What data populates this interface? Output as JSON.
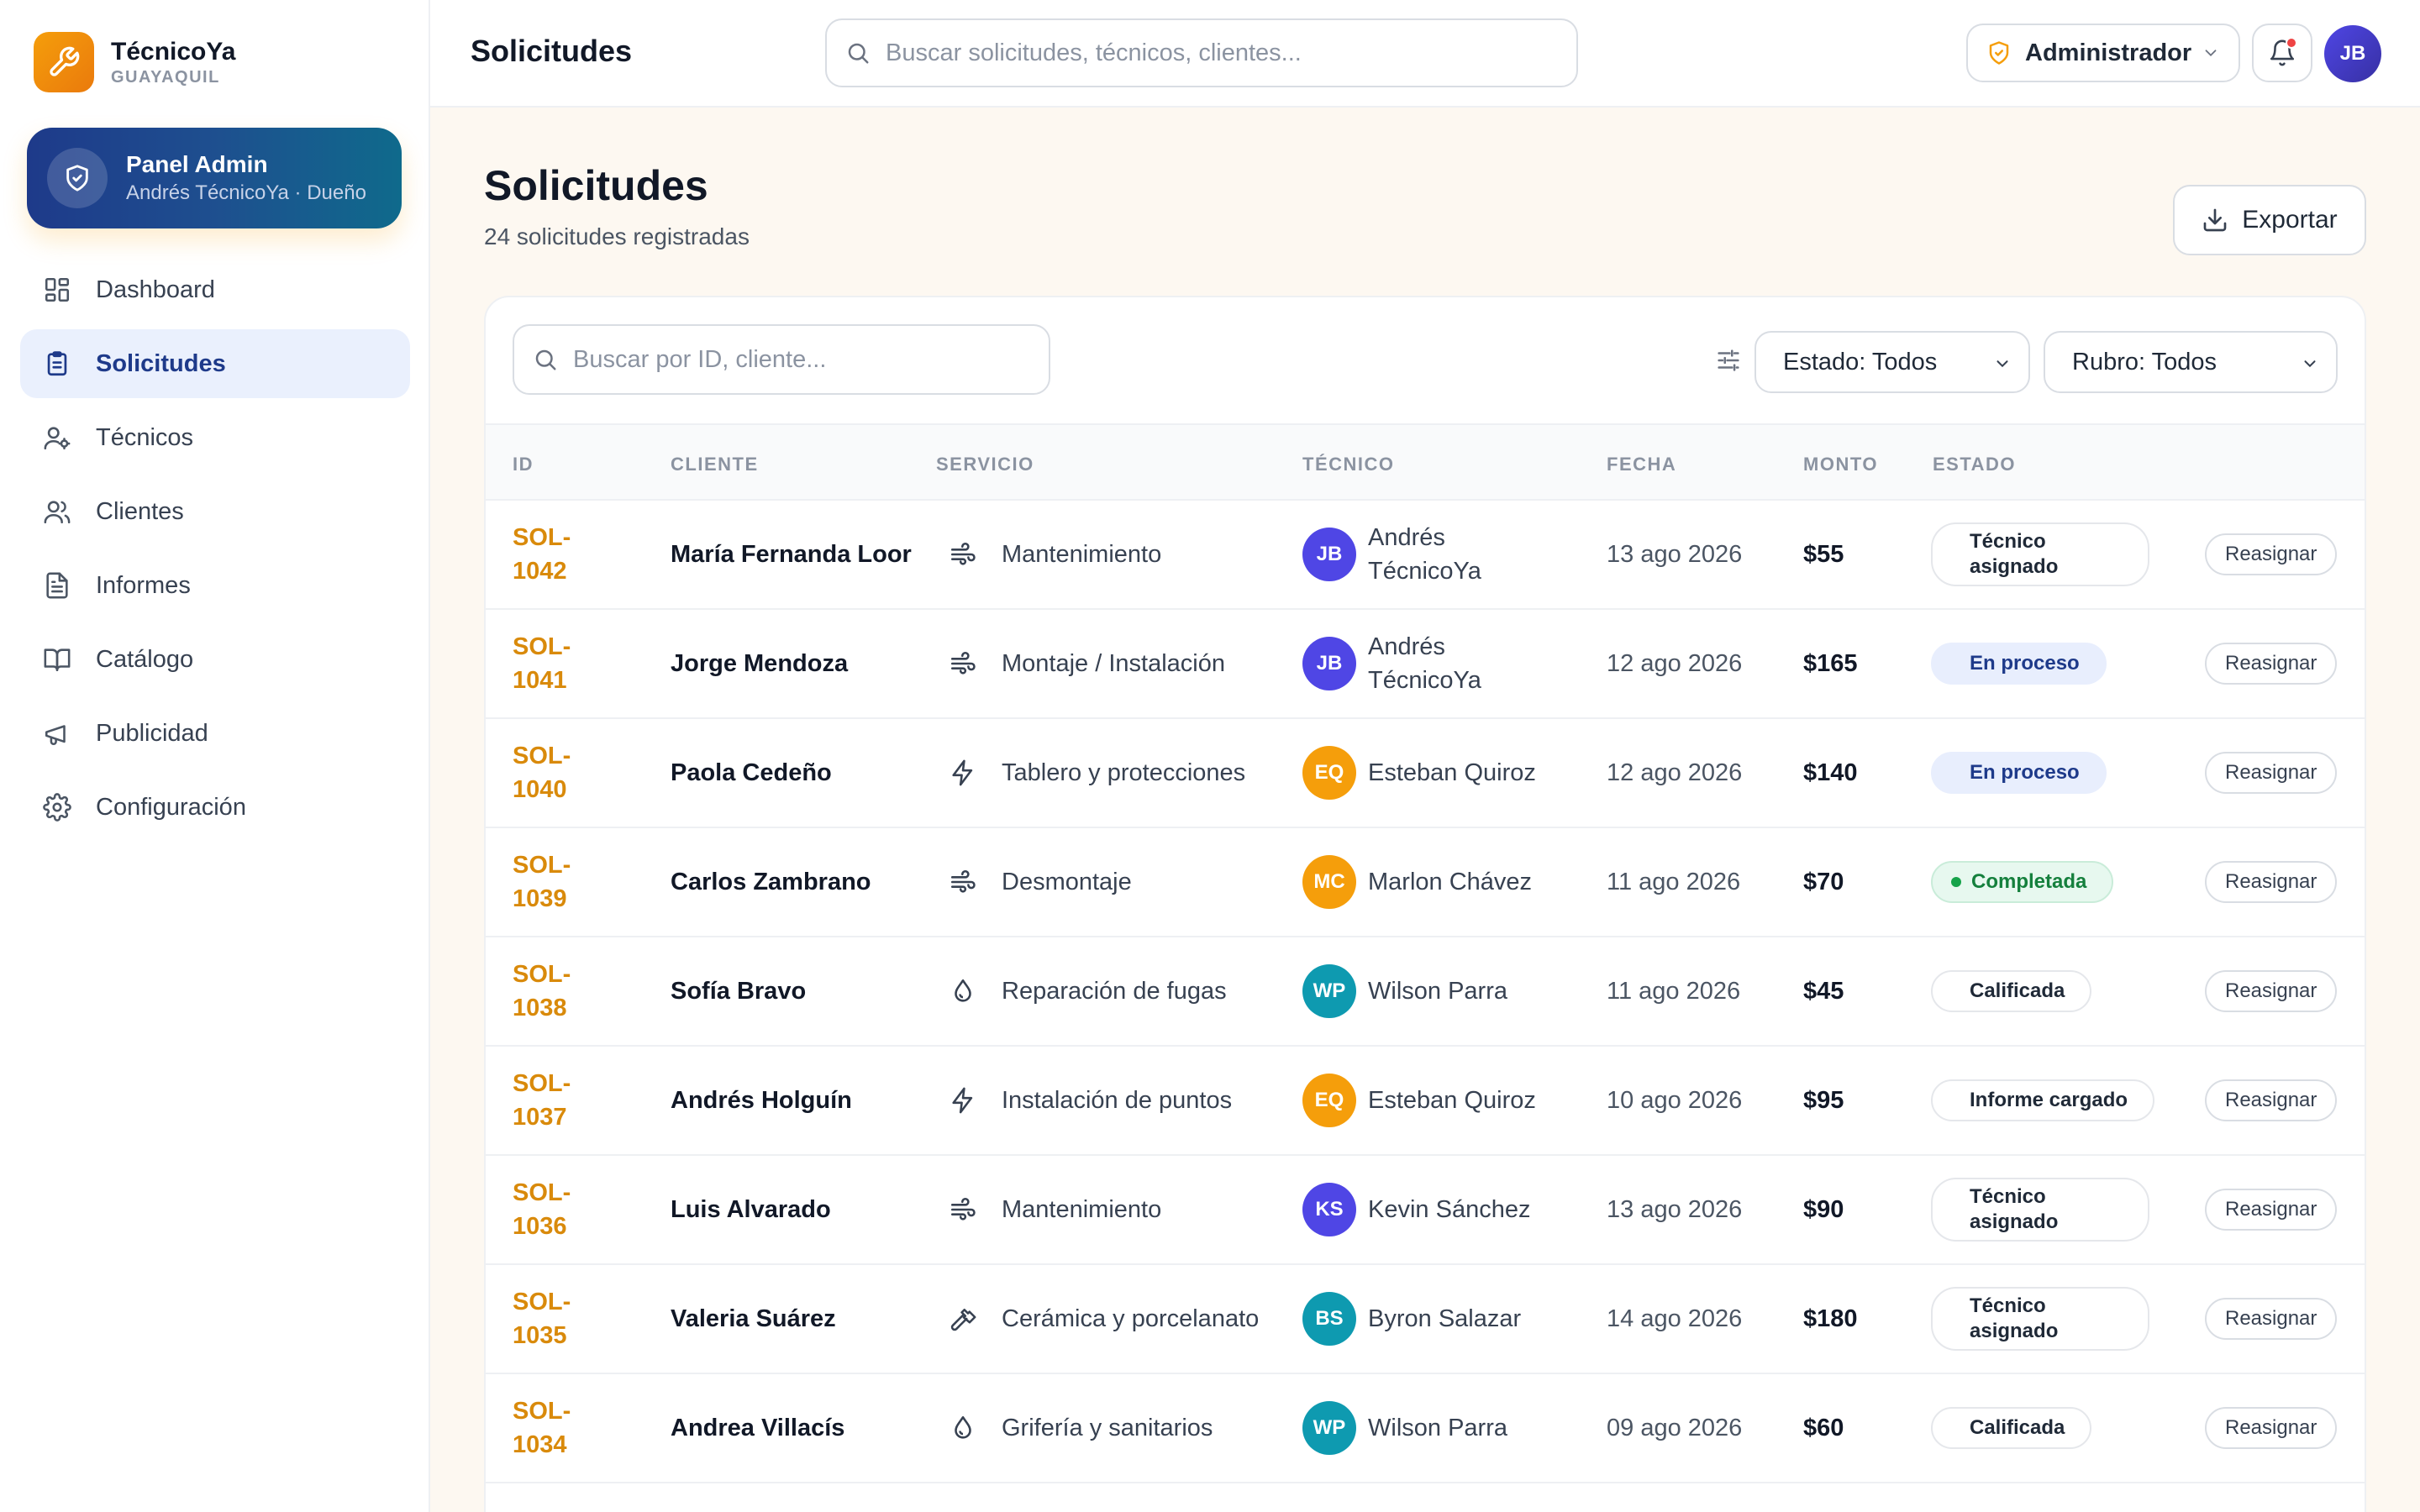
{
  "brand": {
    "name": "TécnicoYa",
    "city": "GUAYAQUIL"
  },
  "admin_card": {
    "title": "Panel Admin",
    "subtitle": "Andrés TécnicoYa · Dueño"
  },
  "nav": [
    {
      "label": "Dashboard",
      "icon": "dashboard-icon"
    },
    {
      "label": "Solicitudes",
      "icon": "clipboard-icon",
      "active": true
    },
    {
      "label": "Técnicos",
      "icon": "user-gear-icon"
    },
    {
      "label": "Clientes",
      "icon": "users-icon"
    },
    {
      "label": "Informes",
      "icon": "document-icon"
    },
    {
      "label": "Catálogo",
      "icon": "book-icon"
    },
    {
      "label": "Publicidad",
      "icon": "megaphone-icon"
    },
    {
      "label": "Configuración",
      "icon": "gear-icon"
    }
  ],
  "topbar": {
    "title": "Solicitudes",
    "search_placeholder": "Buscar solicitudes, técnicos, clientes...",
    "role": "Administrador",
    "avatar_initials": "JB"
  },
  "page": {
    "title": "Solicitudes",
    "subtitle": "24 solicitudes registradas",
    "export_label": "Exportar"
  },
  "filters": {
    "search_placeholder": "Buscar por ID, cliente...",
    "estado": "Estado: Todos",
    "rubro": "Rubro: Todos"
  },
  "table": {
    "columns": [
      "ID",
      "CLIENTE",
      "SERVICIO",
      "TÉCNICO",
      "FECHA",
      "MONTO",
      "ESTADO"
    ],
    "action_label": "Reasignar",
    "rows": [
      {
        "id": "SOL-1042",
        "client": "María Fernanda Loor",
        "service": "Mantenimiento",
        "service_icon": "airflow-icon",
        "tech_initials": "JB",
        "tech": "Andrés TécnicoYa",
        "tech_color": "#4f46e5",
        "date": "13 ago 2026",
        "amount": "$55",
        "status": "Técnico asignado",
        "status_type": "asignado"
      },
      {
        "id": "SOL-1041",
        "client": "Jorge Mendoza",
        "service": "Montaje / Instalación",
        "service_icon": "airflow-icon",
        "tech_initials": "JB",
        "tech": "Andrés TécnicoYa",
        "tech_color": "#4f46e5",
        "date": "12 ago 2026",
        "amount": "$165",
        "status": "En proceso",
        "status_type": "proceso"
      },
      {
        "id": "SOL-1040",
        "client": "Paola Cedeño",
        "service": "Tablero y protecciones",
        "service_icon": "lightning-icon",
        "tech_initials": "EQ",
        "tech": "Esteban Quiroz",
        "tech_color": "#f59e0b",
        "date": "12 ago 2026",
        "amount": "$140",
        "status": "En proceso",
        "status_type": "proceso"
      },
      {
        "id": "SOL-1039",
        "client": "Carlos Zambrano",
        "service": "Desmontaje",
        "service_icon": "airflow-icon",
        "tech_initials": "MC",
        "tech": "Marlon Chávez",
        "tech_color": "#f59e0b",
        "date": "11 ago 2026",
        "amount": "$70",
        "status": "Completada",
        "status_type": "completada"
      },
      {
        "id": "SOL-1038",
        "client": "Sofía Bravo",
        "service": "Reparación de fugas",
        "service_icon": "droplet-icon",
        "tech_initials": "WP",
        "tech": "Wilson Parra",
        "tech_color": "#0e9ab0",
        "date": "11 ago 2026",
        "amount": "$45",
        "status": "Calificada",
        "status_type": "neutral"
      },
      {
        "id": "SOL-1037",
        "client": "Andrés Holguín",
        "service": "Instalación de puntos",
        "service_icon": "lightning-icon",
        "tech_initials": "EQ",
        "tech": "Esteban Quiroz",
        "tech_color": "#f59e0b",
        "date": "10 ago 2026",
        "amount": "$95",
        "status": "Informe cargado",
        "status_type": "neutral"
      },
      {
        "id": "SOL-1036",
        "client": "Luis Alvarado",
        "service": "Mantenimiento",
        "service_icon": "airflow-icon",
        "tech_initials": "KS",
        "tech": "Kevin Sánchez",
        "tech_color": "#4f46e5",
        "date": "13 ago 2026",
        "amount": "$90",
        "status": "Técnico asignado",
        "status_type": "asignado"
      },
      {
        "id": "SOL-1035",
        "client": "Valeria Suárez",
        "service": "Cerámica y porcelanato",
        "service_icon": "hammer-icon",
        "tech_initials": "BS",
        "tech": "Byron Salazar",
        "tech_color": "#0e9ab0",
        "date": "14 ago 2026",
        "amount": "$180",
        "status": "Técnico asignado",
        "status_type": "asignado"
      },
      {
        "id": "SOL-1034",
        "client": "Andrea Villacís",
        "service": "Grifería y sanitarios",
        "service_icon": "droplet-icon",
        "tech_initials": "WP",
        "tech": "Wilson Parra",
        "tech_color": "#0e9ab0",
        "date": "09 ago 2026",
        "amount": "$60",
        "status": "Calificada",
        "status_type": "neutral"
      }
    ]
  }
}
